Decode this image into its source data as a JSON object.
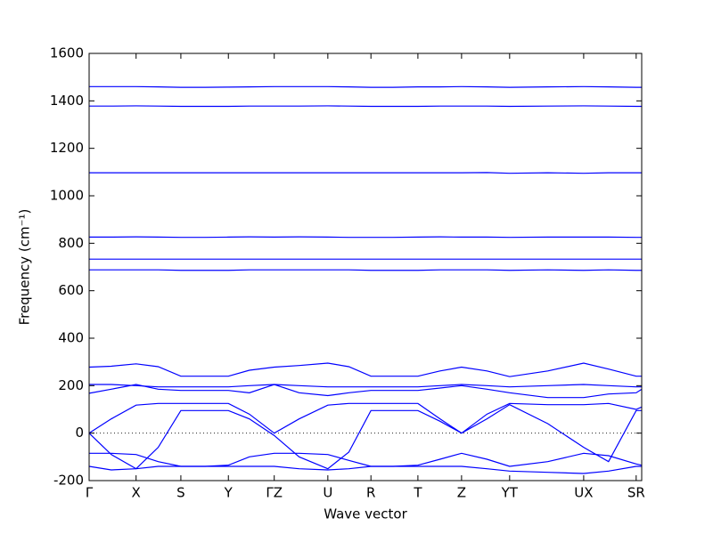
{
  "chart_data": {
    "type": "line",
    "xlabel": "Wave vector",
    "ylabel": "Frequency (cm⁻¹)",
    "color": "#0000ff",
    "zero_line": true,
    "xlim": [
      0,
      1
    ],
    "xticks": [
      {
        "value": 0,
        "label": "Γ"
      },
      {
        "value": 0.085,
        "label": "X"
      },
      {
        "value": 0.166,
        "label": "S"
      },
      {
        "value": 0.252,
        "label": "Y"
      },
      {
        "value": 0.335,
        "label": "ΓZ"
      },
      {
        "value": 0.432,
        "label": "U"
      },
      {
        "value": 0.51,
        "label": "R"
      },
      {
        "value": 0.595,
        "label": "T"
      },
      {
        "value": 0.674,
        "label": "Z"
      },
      {
        "value": 0.761,
        "label": "YT"
      },
      {
        "value": 0.895,
        "label": "UX"
      },
      {
        "value": 0.99,
        "label": "SR"
      }
    ],
    "ylim": [
      -200,
      1600
    ],
    "yticks": [
      -200,
      0,
      200,
      400,
      600,
      800,
      1000,
      1200,
      1400,
      1600
    ],
    "x": [
      0,
      0.04,
      0.085,
      0.125,
      0.166,
      0.21,
      0.252,
      0.29,
      0.335,
      0.38,
      0.432,
      0.47,
      0.51,
      0.55,
      0.595,
      0.635,
      0.674,
      0.72,
      0.761,
      0.83,
      0.895,
      0.94,
      0.99,
      1.0
    ],
    "series": [
      {
        "values": [
          1460,
          1460,
          1460,
          1459,
          1457,
          1457,
          1458,
          1459,
          1460,
          1460,
          1460,
          1459,
          1457,
          1457,
          1459,
          1459,
          1460,
          1459,
          1457,
          1459,
          1460,
          1459,
          1457,
          1457
        ]
      },
      {
        "values": [
          1378,
          1378,
          1379,
          1378,
          1377,
          1377,
          1377,
          1378,
          1378,
          1378,
          1379,
          1378,
          1377,
          1377,
          1377,
          1378,
          1378,
          1378,
          1377,
          1378,
          1379,
          1378,
          1377,
          1377
        ]
      },
      {
        "values": [
          1097,
          1097,
          1097,
          1097,
          1097,
          1097,
          1097,
          1097,
          1097,
          1097,
          1097,
          1097,
          1097,
          1097,
          1097,
          1097,
          1097,
          1098,
          1095,
          1097,
          1095,
          1097,
          1097,
          1097
        ]
      },
      {
        "values": [
          826,
          826,
          827,
          826,
          825,
          825,
          826,
          827,
          826,
          827,
          826,
          825,
          825,
          825,
          826,
          827,
          826,
          826,
          825,
          826,
          826,
          826,
          825,
          825
        ]
      },
      {
        "values": [
          733,
          733,
          733,
          733,
          733,
          733,
          733,
          733,
          733,
          733,
          733,
          733,
          733,
          733,
          733,
          733,
          733,
          733,
          733,
          733,
          733,
          733,
          733,
          733
        ]
      },
      {
        "values": [
          688,
          688,
          688,
          688,
          686,
          686,
          686,
          688,
          688,
          688,
          688,
          688,
          686,
          686,
          686,
          688,
          688,
          688,
          686,
          688,
          686,
          688,
          686,
          686
        ]
      },
      {
        "values": [
          278,
          282,
          292,
          280,
          240,
          240,
          240,
          265,
          278,
          285,
          295,
          280,
          240,
          240,
          240,
          262,
          278,
          262,
          238,
          262,
          295,
          270,
          240,
          240
        ]
      },
      {
        "values": [
          205,
          205,
          200,
          195,
          195,
          195,
          195,
          200,
          205,
          200,
          195,
          195,
          195,
          195,
          195,
          200,
          205,
          200,
          195,
          200,
          205,
          200,
          195,
          195
        ]
      },
      {
        "values": [
          168,
          185,
          205,
          185,
          180,
          180,
          180,
          170,
          205,
          170,
          158,
          170,
          180,
          180,
          180,
          190,
          200,
          185,
          170,
          150,
          150,
          165,
          170,
          185
        ]
      },
      {
        "values": [
          0,
          60,
          118,
          125,
          125,
          125,
          125,
          80,
          0,
          60,
          118,
          125,
          125,
          125,
          125,
          60,
          0,
          80,
          125,
          120,
          120,
          125,
          100,
          110
        ]
      },
      {
        "values": [
          0,
          -90,
          -150,
          -60,
          95,
          95,
          95,
          60,
          -10,
          -100,
          -150,
          -80,
          95,
          95,
          95,
          50,
          0,
          60,
          120,
          40,
          -60,
          -120,
          95,
          95
        ]
      },
      {
        "values": [
          -85,
          -85,
          -90,
          -120,
          -140,
          -140,
          -135,
          -100,
          -85,
          -85,
          -90,
          -115,
          -140,
          -140,
          -135,
          -110,
          -85,
          -110,
          -140,
          -120,
          -85,
          -95,
          -130,
          -135
        ]
      },
      {
        "values": [
          -140,
          -155,
          -150,
          -140,
          -140,
          -140,
          -140,
          -140,
          -140,
          -150,
          -155,
          -150,
          -140,
          -140,
          -140,
          -140,
          -140,
          -150,
          -160,
          -165,
          -170,
          -160,
          -140,
          -140
        ]
      }
    ]
  }
}
